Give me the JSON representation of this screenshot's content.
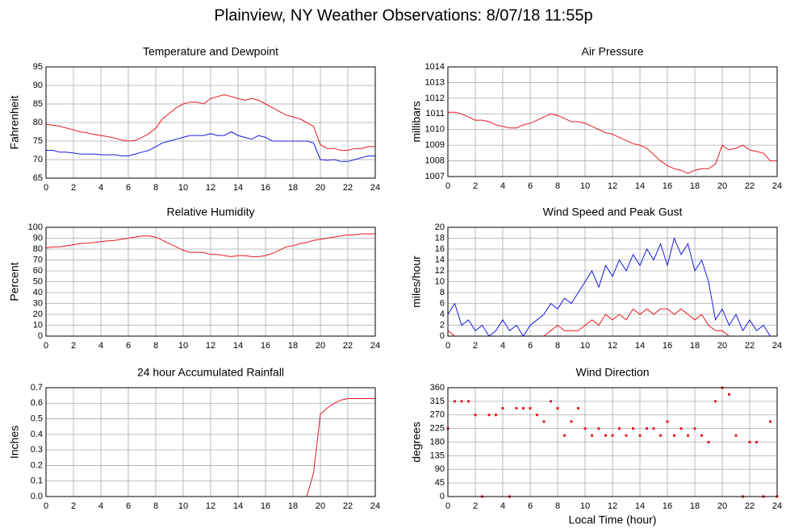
{
  "title": "Plainview, NY Weather Observations: 8/07/18 11:55p",
  "chart_data": [
    {
      "type": "line",
      "title": "Temperature and Dewpoint",
      "ylabel": "Fahrenheit",
      "x": [
        0,
        0.5,
        1,
        1.5,
        2,
        2.5,
        3,
        3.5,
        4,
        4.5,
        5,
        5.5,
        6,
        6.5,
        7,
        7.5,
        8,
        8.5,
        9,
        9.5,
        10,
        10.5,
        11,
        11.5,
        12,
        12.5,
        13,
        13.5,
        14,
        14.5,
        15,
        15.5,
        16,
        16.5,
        17,
        17.5,
        18,
        18.5,
        19,
        19.5,
        20,
        20.5,
        21,
        21.5,
        22,
        22.5,
        23,
        23.5,
        24
      ],
      "series": [
        {
          "color": "#e8191f",
          "values": [
            79.5,
            79.3,
            79,
            78.5,
            78,
            77.5,
            77.2,
            76.8,
            76.5,
            76.2,
            75.8,
            75.3,
            75,
            75.2,
            76,
            77,
            78.5,
            81,
            82.5,
            84,
            85,
            85.5,
            85.5,
            85,
            86.5,
            87,
            87.5,
            87,
            86.5,
            86,
            86.5,
            86,
            85,
            84,
            83,
            82,
            81.5,
            81,
            80,
            79,
            74,
            73,
            73,
            72.5,
            72.5,
            73,
            73,
            73.5,
            73.5
          ]
        },
        {
          "color": "#1a1adc",
          "values": [
            72.5,
            72.5,
            72,
            72,
            71.8,
            71.5,
            71.5,
            71.5,
            71.3,
            71.3,
            71.3,
            71,
            71,
            71.5,
            72,
            72.5,
            73.5,
            74.5,
            75,
            75.5,
            76,
            76.5,
            76.5,
            76.5,
            77,
            76.5,
            76.5,
            77.5,
            76.5,
            76,
            75.5,
            76.5,
            76,
            75,
            75,
            75,
            75,
            75,
            75,
            74.5,
            70,
            69.8,
            70,
            69.5,
            69.5,
            70,
            70.5,
            71,
            71
          ]
        }
      ],
      "xlim": [
        0,
        24
      ],
      "xticks": [
        0,
        2,
        4,
        6,
        8,
        10,
        12,
        14,
        16,
        18,
        20,
        22,
        24
      ],
      "ylim": [
        65,
        95
      ],
      "yticks": [
        65,
        70,
        75,
        80,
        85,
        90,
        95
      ],
      "grid": true
    },
    {
      "type": "line",
      "title": "Air Pressure",
      "ylabel": "millibars",
      "x": [
        0,
        0.5,
        1,
        1.5,
        2,
        2.5,
        3,
        3.5,
        4,
        4.5,
        5,
        5.5,
        6,
        6.5,
        7,
        7.5,
        8,
        8.5,
        9,
        9.5,
        10,
        10.5,
        11,
        11.5,
        12,
        12.5,
        13,
        13.5,
        14,
        14.5,
        15,
        15.5,
        16,
        16.5,
        17,
        17.5,
        18,
        18.5,
        19,
        19.5,
        20,
        20.5,
        21,
        21.5,
        22,
        22.5,
        23,
        23.5,
        24
      ],
      "series": [
        {
          "color": "#e8191f",
          "values": [
            1011.1,
            1011.1,
            1011,
            1010.8,
            1010.6,
            1010.6,
            1010.5,
            1010.3,
            1010.2,
            1010.1,
            1010.1,
            1010.3,
            1010.4,
            1010.6,
            1010.8,
            1011,
            1010.9,
            1010.7,
            1010.5,
            1010.5,
            1010.4,
            1010.2,
            1010,
            1009.8,
            1009.7,
            1009.5,
            1009.3,
            1009.1,
            1009,
            1008.8,
            1008.4,
            1008,
            1007.7,
            1007.5,
            1007.4,
            1007.2,
            1007.4,
            1007.5,
            1007.5,
            1007.8,
            1009,
            1008.7,
            1008.8,
            1009,
            1008.7,
            1008.6,
            1008.5,
            1008,
            1008
          ]
        }
      ],
      "xlim": [
        0,
        24
      ],
      "xticks": [
        0,
        2,
        4,
        6,
        8,
        10,
        12,
        14,
        16,
        18,
        20,
        22,
        24
      ],
      "ylim": [
        1007,
        1014
      ],
      "yticks": [
        1007,
        1008,
        1009,
        1010,
        1011,
        1012,
        1013,
        1014
      ],
      "grid": true
    },
    {
      "type": "line",
      "title": "Relative Humidity",
      "ylabel": "Percent",
      "x": [
        0,
        0.5,
        1,
        1.5,
        2,
        2.5,
        3,
        3.5,
        4,
        4.5,
        5,
        5.5,
        6,
        6.5,
        7,
        7.5,
        8,
        8.5,
        9,
        9.5,
        10,
        10.5,
        11,
        11.5,
        12,
        12.5,
        13,
        13.5,
        14,
        14.5,
        15,
        15.5,
        16,
        16.5,
        17,
        17.5,
        18,
        18.5,
        19,
        19.5,
        20,
        20.5,
        21,
        21.5,
        22,
        22.5,
        23,
        23.5,
        24
      ],
      "series": [
        {
          "color": "#e8191f",
          "values": [
            81,
            82,
            82,
            83,
            84,
            85,
            85.5,
            86,
            87,
            87.5,
            88,
            89,
            90,
            91,
            92,
            92,
            91,
            88,
            85,
            82,
            79,
            77,
            77,
            77,
            75,
            75,
            74,
            73,
            74,
            74,
            73,
            73,
            74,
            76,
            79,
            82,
            83,
            85,
            86,
            88,
            89,
            90,
            91,
            92,
            93,
            93,
            94,
            94,
            94
          ]
        }
      ],
      "xlim": [
        0,
        24
      ],
      "xticks": [
        0,
        2,
        4,
        6,
        8,
        10,
        12,
        14,
        16,
        18,
        20,
        22,
        24
      ],
      "ylim": [
        0,
        100
      ],
      "yticks": [
        0,
        10,
        20,
        30,
        40,
        50,
        60,
        70,
        80,
        90,
        100
      ],
      "grid": true
    },
    {
      "type": "line",
      "title": "Wind Speed and Peak Gust",
      "ylabel": "miles/hour",
      "x": [
        0,
        0.5,
        1,
        1.5,
        2,
        2.5,
        3,
        3.5,
        4,
        4.5,
        5,
        5.5,
        6,
        6.5,
        7,
        7.5,
        8,
        8.5,
        9,
        9.5,
        10,
        10.5,
        11,
        11.5,
        12,
        12.5,
        13,
        13.5,
        14,
        14.5,
        15,
        15.5,
        16,
        16.5,
        17,
        17.5,
        18,
        18.5,
        19,
        19.5,
        20,
        20.5,
        21,
        21.5,
        22,
        22.5,
        23,
        23.5,
        24
      ],
      "series": [
        {
          "color": "#1a1adc",
          "values": [
            4,
            6,
            2,
            3,
            1,
            2,
            0,
            1,
            3,
            1,
            2,
            0,
            2,
            3,
            4,
            6,
            5,
            7,
            6,
            8,
            10,
            12,
            9,
            13,
            11,
            14,
            12,
            15,
            13,
            16,
            14,
            17,
            13,
            18,
            15,
            17,
            12,
            14,
            10,
            3,
            5,
            2,
            4,
            1,
            3,
            1,
            2,
            0,
            null
          ]
        },
        {
          "color": "#e8191f",
          "values": [
            1,
            0,
            0,
            0,
            0,
            0,
            0,
            0,
            0,
            0,
            0,
            0,
            0,
            0,
            0,
            1,
            2,
            1,
            1,
            1,
            2,
            3,
            2,
            4,
            3,
            4,
            3,
            5,
            4,
            5,
            4,
            5,
            5,
            4,
            5,
            4,
            3,
            4,
            2,
            1,
            1,
            0,
            0,
            0,
            0,
            0,
            0,
            0,
            null
          ]
        }
      ],
      "xlim": [
        0,
        24
      ],
      "xticks": [
        0,
        2,
        4,
        6,
        8,
        10,
        12,
        14,
        16,
        18,
        20,
        22,
        24
      ],
      "ylim": [
        0,
        20
      ],
      "yticks": [
        0,
        2,
        4,
        6,
        8,
        10,
        12,
        14,
        16,
        18,
        20
      ],
      "grid": true
    },
    {
      "type": "line",
      "title": "24 hour Accumulated Rainfall",
      "ylabel": "Inches",
      "x": [
        0,
        0.5,
        1,
        1.5,
        2,
        2.5,
        3,
        3.5,
        4,
        4.5,
        5,
        5.5,
        6,
        6.5,
        7,
        7.5,
        8,
        8.5,
        9,
        9.5,
        10,
        10.5,
        11,
        11.5,
        12,
        12.5,
        13,
        13.5,
        14,
        14.5,
        15,
        15.5,
        16,
        16.5,
        17,
        17.5,
        18,
        18.5,
        19,
        19.5,
        20,
        20.5,
        21,
        21.5,
        22,
        22.5,
        23,
        23.5,
        24
      ],
      "series": [
        {
          "color": "#e8191f",
          "values": [
            0,
            0,
            0,
            0,
            0,
            0,
            0,
            0,
            0,
            0,
            0,
            0,
            0,
            0,
            0,
            0,
            0,
            0,
            0,
            0,
            0,
            0,
            0,
            0,
            0,
            0,
            0,
            0,
            0,
            0,
            0,
            0,
            0,
            0,
            0,
            0,
            0,
            0,
            0,
            0.15,
            0.53,
            0.57,
            0.6,
            0.62,
            0.63,
            0.63,
            0.63,
            0.63,
            0.63
          ]
        }
      ],
      "xlim": [
        0,
        24
      ],
      "xticks": [
        0,
        2,
        4,
        6,
        8,
        10,
        12,
        14,
        16,
        18,
        20,
        22,
        24
      ],
      "ylim": [
        0,
        0.7
      ],
      "yticks": [
        {
          "value": 0,
          "label": "0.0"
        },
        0.1,
        0.2,
        0.3,
        0.4,
        0.5,
        0.6,
        0.7
      ],
      "grid": true
    },
    {
      "type": "scatter",
      "title": "Wind Direction",
      "ylabel": "degrees",
      "xlabel": "Local Time (hour)",
      "x": [
        0,
        0.5,
        1,
        1.5,
        2,
        2.5,
        3,
        3.5,
        4,
        4.5,
        5,
        5.5,
        6,
        6.5,
        7,
        7.5,
        8,
        8.5,
        9,
        9.5,
        10,
        10.5,
        11,
        11.5,
        12,
        12.5,
        13,
        13.5,
        14,
        14.5,
        15,
        15.5,
        16,
        16.5,
        17,
        17.5,
        18,
        18.5,
        19,
        19.5,
        20,
        20.5,
        21,
        21.5,
        22,
        22.5,
        23,
        23.5,
        24
      ],
      "series": [
        {
          "color": "#e8191f",
          "values": [
            225,
            315,
            315,
            315,
            270,
            0,
            270,
            270,
            292,
            0,
            292,
            292,
            292,
            270,
            248,
            315,
            292,
            202,
            248,
            292,
            225,
            202,
            225,
            202,
            202,
            225,
            202,
            225,
            202,
            225,
            225,
            202,
            248,
            202,
            225,
            202,
            225,
            202,
            180,
            315,
            360,
            338,
            202,
            0,
            180,
            180,
            0,
            248,
            0
          ]
        }
      ],
      "xlim": [
        0,
        24
      ],
      "xticks": [
        0,
        2,
        4,
        6,
        8,
        10,
        12,
        14,
        16,
        18,
        20,
        22,
        24
      ],
      "ylim": [
        0,
        360
      ],
      "yticks": [
        0,
        45,
        90,
        135,
        180,
        225,
        270,
        315,
        360
      ],
      "grid": true
    }
  ]
}
